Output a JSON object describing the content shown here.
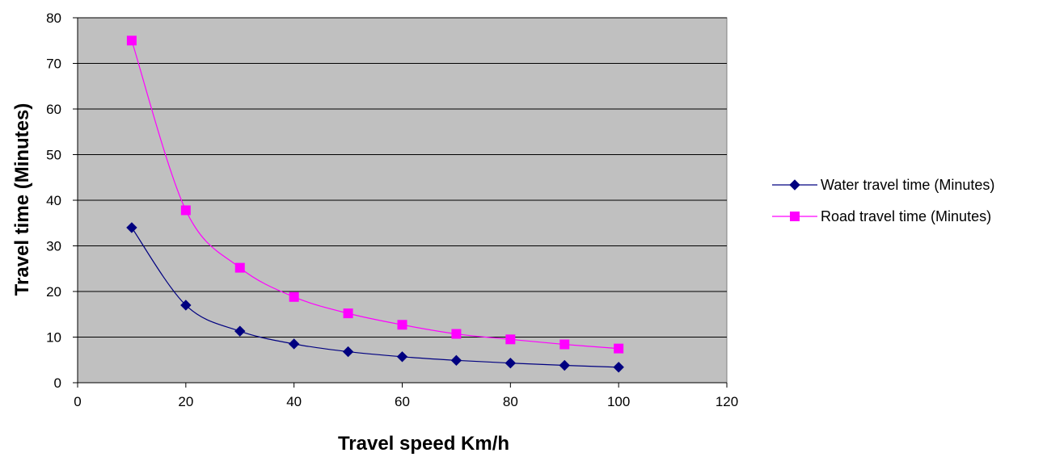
{
  "chart_data": {
    "type": "line",
    "title": "",
    "xlabel": "Travel speed Km/h",
    "ylabel": "Travel time (Minutes)",
    "xlim": [
      0,
      120
    ],
    "ylim": [
      0,
      80
    ],
    "x_ticks": [
      0,
      20,
      40,
      60,
      80,
      100,
      120
    ],
    "y_ticks": [
      0,
      10,
      20,
      30,
      40,
      50,
      60,
      70,
      80
    ],
    "x_tick_labels": [
      "0",
      "20",
      "40",
      "60",
      "80",
      "100",
      "120"
    ],
    "y_tick_labels": [
      "0",
      "10",
      "20",
      "30",
      "40",
      "50",
      "60",
      "70",
      "80"
    ],
    "grid": "horizontal",
    "plot_background": "#c0c0c0",
    "legend_position": "right",
    "x": [
      10,
      20,
      30,
      40,
      50,
      60,
      70,
      80,
      90,
      100
    ],
    "series": [
      {
        "name": "Water travel time (Minutes)",
        "color": "#000080",
        "marker": "diamond",
        "values": [
          34,
          17,
          11.3,
          8.5,
          6.8,
          5.7,
          4.9,
          4.3,
          3.8,
          3.4
        ]
      },
      {
        "name": "Road travel time (Minutes)",
        "color": "#ff00ff",
        "marker": "square",
        "values": [
          75,
          37.8,
          25.2,
          18.8,
          15.2,
          12.7,
          10.7,
          9.5,
          8.4,
          7.5
        ]
      }
    ]
  }
}
